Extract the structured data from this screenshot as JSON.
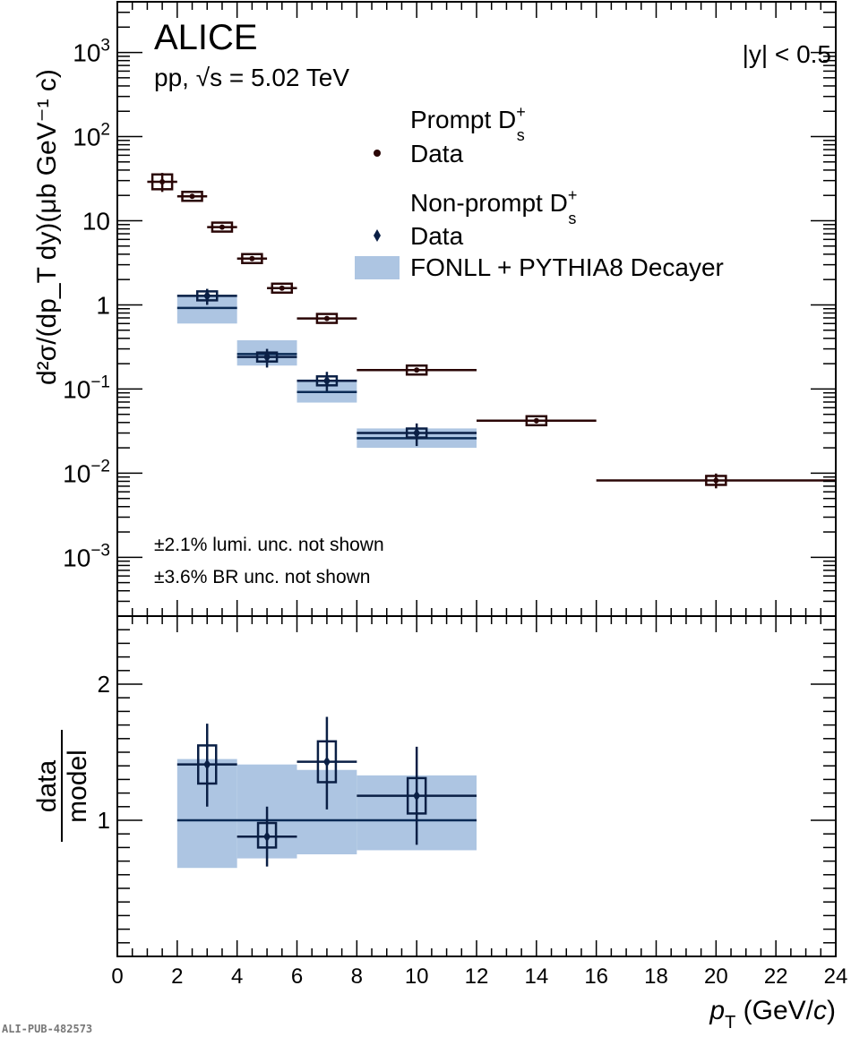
{
  "chart_data": [
    {
      "type": "scatter",
      "panel": "top",
      "title": "ALICE",
      "subtitle": "pp, √s = 5.02 TeV",
      "rapidity_label": "|y| < 0.5",
      "ylabel": "d²σ/(dp_T dy)(μb GeV⁻¹ c)",
      "yscale": "log",
      "ylim": [
        0.0002,
        4000
      ],
      "xlim": [
        0,
        24
      ],
      "yticks": [
        {
          "v": 1000,
          "base": "10",
          "exp": "3"
        },
        {
          "v": 100,
          "base": "10",
          "exp": "2"
        },
        {
          "v": 10,
          "base": "10",
          "exp": ""
        },
        {
          "v": 1,
          "base": "1",
          "exp": ""
        },
        {
          "v": 0.1,
          "base": "10",
          "exp": "−1"
        },
        {
          "v": 0.01,
          "base": "10",
          "exp": "−2"
        },
        {
          "v": 0.001,
          "base": "10",
          "exp": "−3"
        }
      ],
      "notes": [
        "±2.1% lumi. unc. not shown",
        "±3.6% BR unc. not shown"
      ],
      "legend": {
        "prompt_header": "Prompt D",
        "prompt_sup": "+",
        "prompt_sub": "s",
        "prompt_data": "Data",
        "nonprompt_header": "Non-prompt D",
        "nonprompt_sup": "+",
        "nonprompt_sub": "s",
        "nonprompt_data": "Data",
        "model": "FONLL + PYTHIA8 Decayer",
        "placement": "top-right"
      },
      "series": [
        {
          "name": "Prompt Ds+ Data",
          "color": "#2a0606",
          "marker": "circle",
          "points": [
            {
              "xlo": 1,
              "xhi": 2,
              "x": 1.5,
              "y": 29,
              "stat": [
                22,
                37
              ],
              "syst": 0.2
            },
            {
              "xlo": 2,
              "xhi": 3,
              "x": 2.5,
              "y": 19.5,
              "stat": [
                18.5,
                20.5
              ],
              "syst": 0.1
            },
            {
              "xlo": 3,
              "xhi": 4,
              "x": 3.5,
              "y": 8.4,
              "stat": [
                8.1,
                8.7
              ],
              "syst": 0.1
            },
            {
              "xlo": 4,
              "xhi": 5,
              "x": 4.5,
              "y": 3.55,
              "stat": [
                3.45,
                3.65
              ],
              "syst": 0.1
            },
            {
              "xlo": 5,
              "xhi": 6,
              "x": 5.5,
              "y": 1.58,
              "stat": [
                1.53,
                1.63
              ],
              "syst": 0.1
            },
            {
              "xlo": 6,
              "xhi": 8,
              "x": 7,
              "y": 0.69,
              "stat": [
                0.67,
                0.71
              ],
              "syst": 0.1
            },
            {
              "xlo": 8,
              "xhi": 12,
              "x": 10,
              "y": 0.168,
              "stat": [
                0.162,
                0.174
              ],
              "syst": 0.1
            },
            {
              "xlo": 12,
              "xhi": 16,
              "x": 14,
              "y": 0.042,
              "stat": [
                0.039,
                0.045
              ],
              "syst": 0.1
            },
            {
              "xlo": 16,
              "xhi": 24,
              "x": 20,
              "y": 0.0082,
              "stat": [
                0.0066,
                0.0099
              ],
              "syst": 0.12
            }
          ]
        },
        {
          "name": "Non-prompt Ds+ Data",
          "color": "#0a1f45",
          "marker": "diamond",
          "points": [
            {
              "xlo": 2,
              "xhi": 4,
              "x": 3,
              "y": 1.28,
              "stat": [
                1.0,
                1.55
              ],
              "syst": 0.12
            },
            {
              "xlo": 4,
              "xhi": 6,
              "x": 5,
              "y": 0.24,
              "stat": [
                0.18,
                0.3
              ],
              "syst": 0.12
            },
            {
              "xlo": 6,
              "xhi": 8,
              "x": 7,
              "y": 0.125,
              "stat": [
                0.095,
                0.16
              ],
              "syst": 0.12
            },
            {
              "xlo": 8,
              "xhi": 12,
              "x": 10,
              "y": 0.03,
              "stat": [
                0.021,
                0.039
              ],
              "syst": 0.12
            }
          ]
        },
        {
          "name": "FONLL + PYTHIA8 Decayer",
          "color": "#adc5e2",
          "line_color": "#0a2a55",
          "bins": [
            {
              "xlo": 2,
              "xhi": 4,
              "central": 0.92,
              "lo": 0.6,
              "hi": 1.32
            },
            {
              "xlo": 4,
              "xhi": 6,
              "central": 0.26,
              "lo": 0.19,
              "hi": 0.38
            },
            {
              "xlo": 6,
              "xhi": 8,
              "central": 0.092,
              "lo": 0.069,
              "hi": 0.13
            },
            {
              "xlo": 8,
              "xhi": 12,
              "central": 0.026,
              "lo": 0.02,
              "hi": 0.034
            }
          ]
        }
      ]
    },
    {
      "type": "scatter",
      "panel": "bottom",
      "ylabel_num": "data",
      "ylabel_den": "model",
      "xlabel": "p",
      "xlabel_sub": "T",
      "xlabel_unit": " (GeV/",
      "xlabel_c": "c",
      "xlabel_close": ")",
      "ylim": [
        0,
        2.5
      ],
      "xlim": [
        0,
        24
      ],
      "yticks": [
        {
          "v": 1,
          "label": "1"
        },
        {
          "v": 2,
          "label": "2"
        }
      ],
      "xticks": [
        "0",
        "2",
        "4",
        "6",
        "8",
        "10",
        "12",
        "14",
        "16",
        "18",
        "20",
        "22",
        "24"
      ],
      "ratio_points": [
        {
          "xlo": 2,
          "xhi": 4,
          "x": 3,
          "y": 1.41,
          "stat": [
            1.1,
            1.71
          ],
          "syst": [
            1.27,
            1.55
          ]
        },
        {
          "xlo": 4,
          "xhi": 6,
          "x": 5,
          "y": 0.88,
          "stat": [
            0.66,
            1.1
          ],
          "syst": [
            0.8,
            0.98
          ]
        },
        {
          "xlo": 6,
          "xhi": 8,
          "x": 7,
          "y": 1.43,
          "stat": [
            1.08,
            1.76
          ],
          "syst": [
            1.28,
            1.58
          ]
        },
        {
          "xlo": 8,
          "xhi": 12,
          "x": 10,
          "y": 1.18,
          "stat": [
            0.82,
            1.54
          ],
          "syst": [
            1.05,
            1.31
          ]
        }
      ],
      "model_band": [
        {
          "xlo": 2,
          "xhi": 4,
          "lo": 0.65,
          "hi": 1.45
        },
        {
          "xlo": 4,
          "xhi": 6,
          "lo": 0.72,
          "hi": 1.41
        },
        {
          "xlo": 6,
          "xhi": 8,
          "lo": 0.75,
          "hi": 1.37
        },
        {
          "xlo": 8,
          "xhi": 12,
          "lo": 0.78,
          "hi": 1.33
        }
      ]
    }
  ],
  "watermark": "ALI-PUB-482573"
}
